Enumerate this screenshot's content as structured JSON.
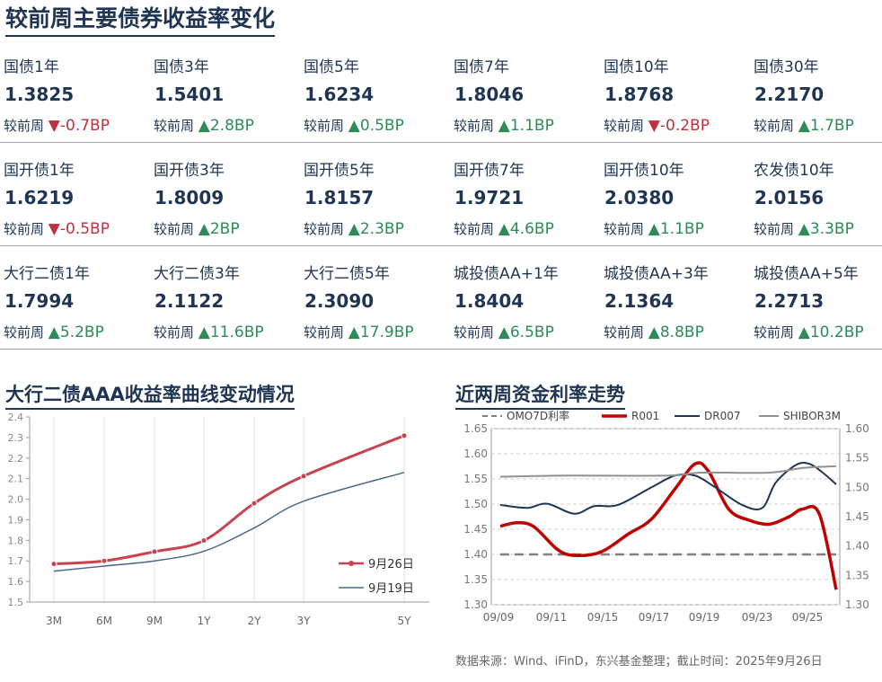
{
  "title": "较前周主要债券收益率变化",
  "change_prefix": "较前周",
  "colors": {
    "up": "#2e8b57",
    "down": "#c0303f",
    "navy": "#1f3553"
  },
  "rows": [
    [
      {
        "name": "国债1年",
        "value": "1.3825",
        "dir": "down",
        "change": "▼-0.7BP"
      },
      {
        "name": "国债3年",
        "value": "1.5401",
        "dir": "up",
        "change": "▲2.8BP"
      },
      {
        "name": "国债5年",
        "value": "1.6234",
        "dir": "up",
        "change": "▲0.5BP"
      },
      {
        "name": "国债7年",
        "value": "1.8046",
        "dir": "up",
        "change": "▲1.1BP"
      },
      {
        "name": "国债10年",
        "value": "1.8768",
        "dir": "down",
        "change": "▼-0.2BP"
      },
      {
        "name": "国债30年",
        "value": "2.2170",
        "dir": "up",
        "change": "▲1.7BP"
      }
    ],
    [
      {
        "name": "国开债1年",
        "value": "1.6219",
        "dir": "down",
        "change": "▼-0.5BP"
      },
      {
        "name": "国开债3年",
        "value": "1.8009",
        "dir": "up",
        "change": "▲2BP"
      },
      {
        "name": "国开债5年",
        "value": "1.8157",
        "dir": "up",
        "change": "▲2.3BP"
      },
      {
        "name": "国开债7年",
        "value": "1.9721",
        "dir": "up",
        "change": "▲4.6BP"
      },
      {
        "name": "国开债10年",
        "value": "2.0380",
        "dir": "up",
        "change": "▲1.1BP"
      },
      {
        "name": "农发债10年",
        "value": "2.0156",
        "dir": "up",
        "change": "▲3.3BP"
      }
    ],
    [
      {
        "name": "大行二债1年",
        "value": "1.7994",
        "dir": "up",
        "change": "▲5.2BP"
      },
      {
        "name": "大行二债3年",
        "value": "2.1122",
        "dir": "up",
        "change": "▲11.6BP"
      },
      {
        "name": "大行二债5年",
        "value": "2.3090",
        "dir": "up",
        "change": "▲17.9BP"
      },
      {
        "name": "城投债AA+1年",
        "value": "1.8404",
        "dir": "up",
        "change": "▲6.5BP"
      },
      {
        "name": "城投债AA+3年",
        "value": "2.1364",
        "dir": "up",
        "change": "▲8.8BP"
      },
      {
        "name": "城投债AA+5年",
        "value": "2.2713",
        "dir": "up",
        "change": "▲10.2BP"
      }
    ]
  ],
  "left_chart_title": "大行二债AAA收益率曲线变动情况",
  "right_chart_title": "近两周资金利率走势",
  "source": "数据来源：Wind、iFinD，东兴基金整理；截止时间：2025年9月26日",
  "chart_data": [
    {
      "type": "line",
      "title": "大行二债AAA收益率曲线变动情况",
      "x": [
        0.25,
        0.5,
        0.75,
        1,
        2,
        3,
        5
      ],
      "x_tick_labels": [
        "3M",
        "6M",
        "9M",
        "1Y",
        "2Y",
        "3Y",
        "5Y"
      ],
      "ylim": [
        1.5,
        2.4
      ],
      "y_ticks": [
        "1.5",
        "1.6",
        "1.7",
        "1.8",
        "1.9",
        "2.0",
        "2.1",
        "2.2",
        "2.3",
        "2.4"
      ],
      "legend_position": "bottom-right",
      "series": [
        {
          "name": "9月26日",
          "color": "#c8424f",
          "markers": true,
          "values": [
            1.685,
            1.7,
            1.745,
            1.799,
            1.98,
            2.112,
            2.309
          ]
        },
        {
          "name": "9月19日",
          "color": "#4a6a89",
          "markers": false,
          "values": [
            1.65,
            1.675,
            1.7,
            1.747,
            1.86,
            1.99,
            2.13
          ]
        }
      ]
    },
    {
      "type": "line",
      "title": "近两周资金利率走势",
      "x_tick_labels": [
        "09/09",
        "09/11",
        "09/15",
        "09/17",
        "09/19",
        "09/23",
        "09/25"
      ],
      "y_left": {
        "lim": [
          1.3,
          1.65
        ],
        "ticks": [
          "1.30",
          "1.35",
          "1.40",
          "1.45",
          "1.50",
          "1.55",
          "1.60",
          "1.65"
        ]
      },
      "y_right": {
        "lim": [
          1.3,
          1.6
        ],
        "ticks": [
          "1.30",
          "1.35",
          "1.40",
          "1.45",
          "1.50",
          "1.55",
          "1.60"
        ]
      },
      "legend_position": "top",
      "series": [
        {
          "name": "OMO7D利率",
          "axis": "left",
          "color": "#808080",
          "dash": true,
          "x": [
            0,
            1
          ],
          "values": [
            1.4,
            1.4
          ]
        },
        {
          "name": "R001",
          "axis": "left",
          "color": "#c00000",
          "x": [
            0,
            0.05,
            0.1,
            0.17,
            0.22,
            0.3,
            0.38,
            0.45,
            0.52,
            0.58,
            0.62,
            0.68,
            0.74,
            0.8,
            0.86,
            0.9,
            0.95,
            1.0
          ],
          "values": [
            1.456,
            1.463,
            1.455,
            1.41,
            1.398,
            1.405,
            1.44,
            1.47,
            1.53,
            1.58,
            1.565,
            1.49,
            1.468,
            1.46,
            1.475,
            1.49,
            1.48,
            1.33
          ]
        },
        {
          "name": "DR007",
          "axis": "right",
          "color": "#1f3553",
          "x": [
            0,
            0.08,
            0.14,
            0.22,
            0.28,
            0.35,
            0.45,
            0.52,
            0.58,
            0.64,
            0.72,
            0.78,
            0.82,
            0.88,
            0.92,
            0.96,
            1.0
          ],
          "values": [
            1.47,
            1.465,
            1.472,
            1.455,
            1.468,
            1.47,
            1.5,
            1.52,
            1.52,
            1.5,
            1.47,
            1.465,
            1.508,
            1.538,
            1.54,
            1.525,
            1.505
          ]
        },
        {
          "name": "SHIBOR3M",
          "axis": "right",
          "color": "#909090",
          "x": [
            0,
            0.2,
            0.5,
            0.6,
            0.8,
            0.9,
            1.0
          ],
          "values": [
            1.518,
            1.52,
            1.52,
            1.525,
            1.525,
            1.533,
            1.536
          ]
        }
      ]
    }
  ]
}
